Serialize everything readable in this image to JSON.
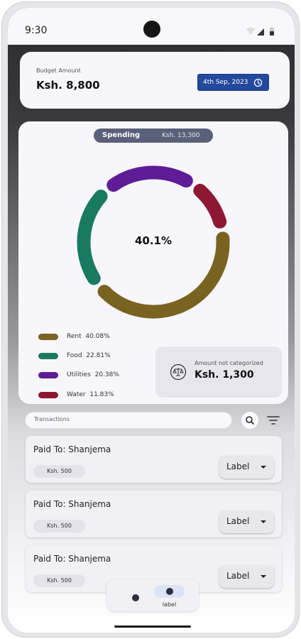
{
  "status_bar": {
    "time": "9:30"
  },
  "budget": {
    "label": "Budget Amount",
    "amount": "Ksh. 8,800",
    "date": "4th Sep, 2023"
  },
  "spending": {
    "pill_label": "Spending",
    "pill_amount": "Ksh. 13,300",
    "center_percent": "40.1%"
  },
  "chart_data": {
    "type": "pie",
    "style": "donut",
    "categories": [
      "Rent",
      "Food",
      "Utilities",
      "Water"
    ],
    "values": [
      40.08,
      22.81,
      20.38,
      11.83
    ],
    "unit": "%",
    "colors": [
      "#7a6320",
      "#197a62",
      "#5e1c97",
      "#8e1833"
    ],
    "legend": [
      {
        "label": "Rent",
        "percent": "40.08%"
      },
      {
        "label": "Food",
        "percent": "22.81%"
      },
      {
        "label": "Utilities",
        "percent": "20.38%"
      },
      {
        "label": "Water",
        "percent": "11.83%"
      }
    ]
  },
  "uncategorized": {
    "label": "Amount not categorized",
    "amount": "Ksh. 1,300"
  },
  "search": {
    "placeholder": "Transactions"
  },
  "transactions": [
    {
      "title": "Paid To: Shanjema",
      "amount": "Ksh. 500",
      "label": "Label"
    },
    {
      "title": "Paid To: Shanjema",
      "amount": "Ksh. 500",
      "label": "Label"
    },
    {
      "title": "Paid To: Shanjema",
      "amount": "Ksh. 500",
      "label": "Label"
    }
  ],
  "bottom_nav": {
    "active_label": "label"
  },
  "icons": [
    "wifi-icon",
    "signal-icon",
    "battery-icon",
    "clock-icon",
    "scale-icon",
    "search-icon",
    "filter-icon",
    "caret-down-icon"
  ]
}
